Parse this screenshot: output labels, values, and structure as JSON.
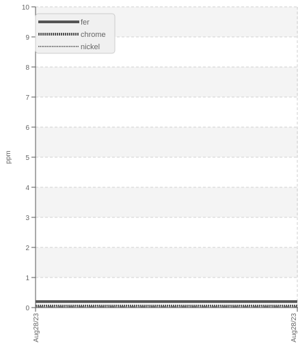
{
  "chart_data": {
    "type": "line",
    "title": "",
    "xlabel": "",
    "ylabel": "ppm",
    "ylim": [
      0,
      10
    ],
    "yticks": [
      0,
      1,
      2,
      3,
      4,
      5,
      6,
      7,
      8,
      9,
      10
    ],
    "categories": [
      "Aug28/23",
      "Aug28/23"
    ],
    "grid": true,
    "legend_position": "top-left",
    "series": [
      {
        "name": "fer",
        "values": [
          0.2,
          0.2
        ],
        "color": "#555555",
        "style": "solid"
      },
      {
        "name": "chrome",
        "values": [
          0.05,
          0.05
        ],
        "color": "#555555",
        "style": "dotted-thick"
      },
      {
        "name": "nickel",
        "values": [
          0.0,
          0.0
        ],
        "color": "#777777",
        "style": "dotted-thin"
      }
    ]
  }
}
